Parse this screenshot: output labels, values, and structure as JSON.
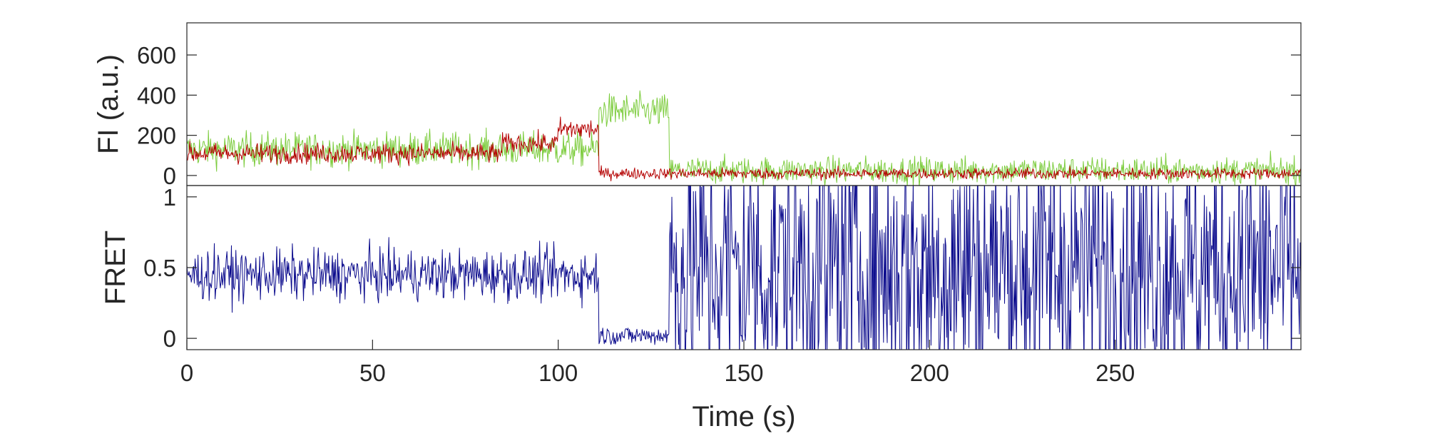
{
  "chart_data": [
    {
      "type": "line",
      "panel": "top",
      "ylabel": "FI (a.u.)",
      "xlim": [
        0,
        300
      ],
      "ylim": [
        -50,
        760
      ],
      "yticks": [
        0,
        200,
        400,
        600
      ],
      "yticklabels": [
        "0",
        "200",
        "400",
        "600"
      ],
      "colors": {
        "donor": "#7ccc3d",
        "acceptor": "#b40000"
      },
      "series": [
        {
          "key": "donor",
          "segments": [
            {
              "x": [
                0,
                111
              ],
              "mean": 130,
              "noise": 75
            },
            {
              "x": [
                111,
                130
              ],
              "mean": 320,
              "noise": 75
            },
            {
              "x": [
                130,
                300
              ],
              "mean": 25,
              "noise": 60
            }
          ]
        },
        {
          "key": "acceptor",
          "segments": [
            {
              "x": [
                0,
                85
              ],
              "mean": 110,
              "noise": 45
            },
            {
              "x": [
                85,
                100
              ],
              "mean": 160,
              "noise": 45
            },
            {
              "x": [
                100,
                111
              ],
              "mean": 230,
              "noise": 50
            },
            {
              "x": [
                111,
                300
              ],
              "mean": 10,
              "noise": 25
            }
          ]
        }
      ]
    },
    {
      "type": "line",
      "panel": "bottom",
      "ylabel": "FRET",
      "xlabel": "Time (s)",
      "xlim": [
        0,
        300
      ],
      "ylim": [
        -0.08,
        1.08
      ],
      "xticks": [
        0,
        50,
        100,
        150,
        200,
        250
      ],
      "xticklabels": [
        "0",
        "50",
        "100",
        "150",
        "200",
        "250"
      ],
      "yticks": [
        0,
        0.5,
        1
      ],
      "yticklabels": [
        "0",
        "0.5",
        "1"
      ],
      "colors": {
        "fret": "#0a0a8c"
      },
      "series": [
        {
          "key": "fret",
          "segments": [
            {
              "x": [
                0,
                111
              ],
              "mean": 0.45,
              "noise": 0.16
            },
            {
              "x": [
                111,
                130
              ],
              "mean": 0.02,
              "noise": 0.06
            },
            {
              "x": [
                130,
                300
              ],
              "mean": 0.5,
              "noise": 0.9
            }
          ]
        }
      ]
    }
  ]
}
